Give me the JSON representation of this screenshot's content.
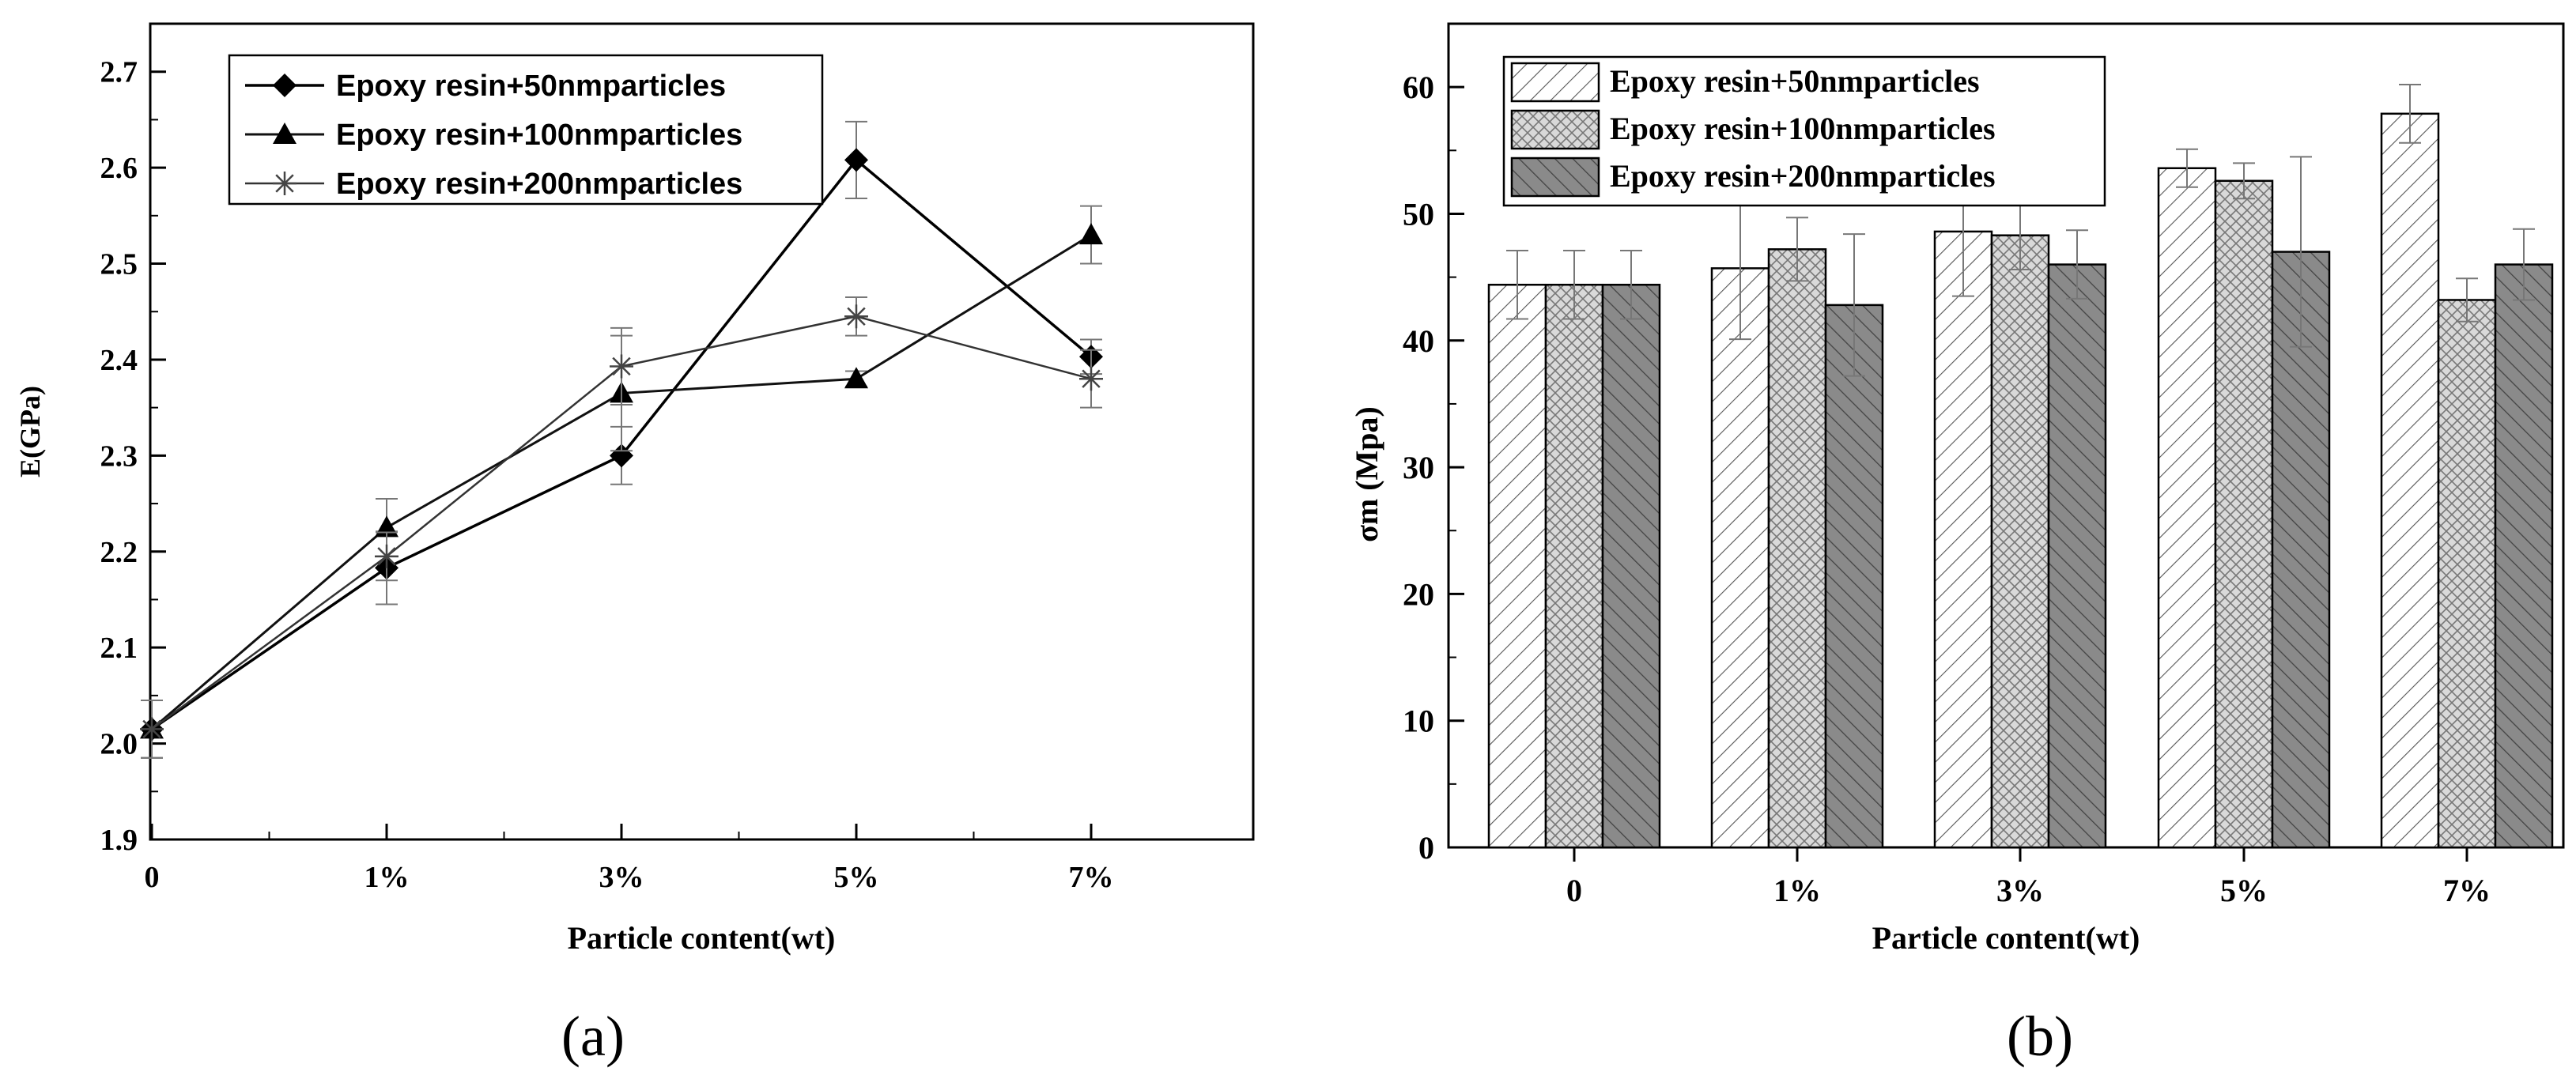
{
  "chart_data": [
    {
      "panel": "(a)",
      "type": "line",
      "xlabel": "Particle content(wt)",
      "ylabel": "E(GPa)",
      "categories": [
        "0",
        "1%",
        "3%",
        "5%",
        "7%"
      ],
      "ylim": [
        1.9,
        2.75
      ],
      "yticks": [
        "1.9",
        "2.0",
        "2.1",
        "2.2",
        "2.3",
        "2.4",
        "2.5",
        "2.6",
        "2.7"
      ],
      "legend_position": "top-left",
      "series": [
        {
          "name": "Epoxy resin+50nmparticles",
          "marker": "diamond",
          "values": [
            2.015,
            2.183,
            2.3,
            2.608,
            2.403
          ],
          "errors": [
            0.03,
            0.038,
            0.03,
            0.04,
            0.018
          ]
        },
        {
          "name": "Epoxy resin+100nmparticles",
          "marker": "triangle",
          "values": [
            2.015,
            2.225,
            2.365,
            2.38,
            2.53
          ],
          "errors": [
            0.03,
            0.03,
            0.06,
            0.008,
            0.03
          ]
        },
        {
          "name": "Epoxy resin+200nmparticles",
          "marker": "star",
          "values": [
            2.015,
            2.195,
            2.393,
            2.445,
            2.38
          ],
          "errors": [
            0.03,
            0.025,
            0.04,
            0.02,
            0.03
          ]
        }
      ]
    },
    {
      "panel": "(b)",
      "type": "bar",
      "xlabel": "Particle content(wt)",
      "ylabel": "σm (Mpa)",
      "categories": [
        "0",
        "1%",
        "3%",
        "5%",
        "7%"
      ],
      "ylim": [
        0,
        65
      ],
      "yticks": [
        "0",
        "10",
        "20",
        "30",
        "40",
        "50",
        "60"
      ],
      "legend_position": "top-left",
      "series": [
        {
          "name": "Epoxy resin+50nmparticles",
          "pattern": "diagonal-light",
          "values": [
            44.4,
            45.7,
            48.6,
            53.6,
            57.9
          ],
          "errors": [
            2.7,
            5.6,
            5.1,
            1.5,
            2.3
          ]
        },
        {
          "name": "Epoxy resin+100nmparticles",
          "pattern": "crosshatch",
          "values": [
            44.4,
            47.2,
            48.3,
            52.6,
            43.2
          ],
          "errors": [
            2.7,
            2.5,
            2.7,
            1.4,
            1.7
          ]
        },
        {
          "name": "Epoxy resin+200nmparticles",
          "pattern": "diagonal-dark",
          "values": [
            44.4,
            42.8,
            46.0,
            47.0,
            46.0
          ],
          "errors": [
            2.7,
            5.6,
            2.7,
            7.5,
            2.8
          ]
        }
      ]
    }
  ]
}
